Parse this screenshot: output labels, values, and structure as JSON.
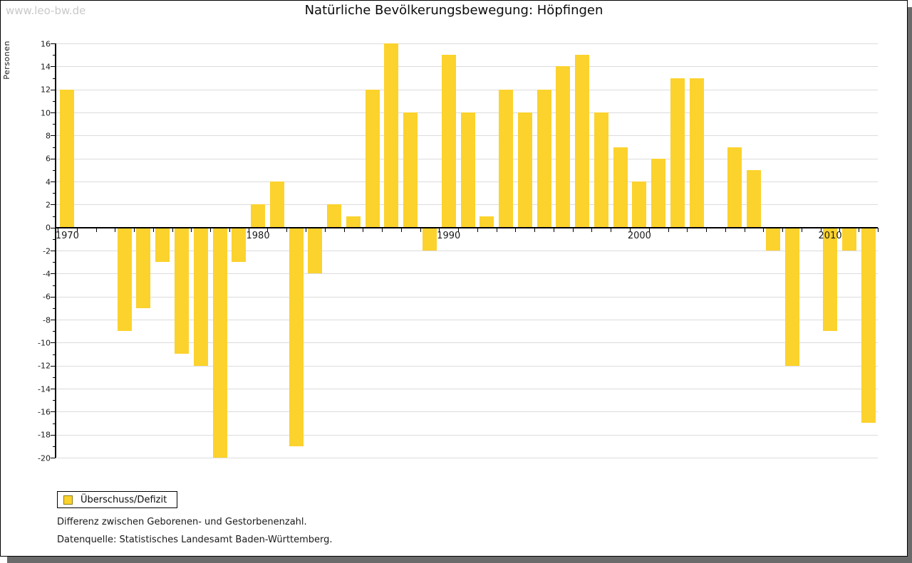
{
  "watermark": "www.leo-bw.de",
  "legend": {
    "label": "Überschuss/Defizit"
  },
  "notes": {
    "line1": "Differenz zwischen Geborenen- und Gestorbenenzahl.",
    "line2": "Datenquelle: Statistisches Landesamt Baden-Württemberg."
  },
  "colors": {
    "bar": "#fcd22d",
    "gridline": "#dcdcdc",
    "axis": "#000000",
    "shadow": "#6b6b6b",
    "watermark": "#c9c9c9"
  },
  "chart_data": {
    "type": "bar",
    "title": "Natürliche Bevölkerungsbewegung: Höpfingen",
    "xlabel": "",
    "ylabel": "Personen",
    "ylim": [
      -20,
      16
    ],
    "ytick_step": 2,
    "ytick_minor_step": 1,
    "grid": true,
    "legend_position": "bottom-left",
    "legend_entries": [
      "Überschuss/Defizit"
    ],
    "xtick_labels": [
      "1970",
      "1980",
      "1990",
      "2000",
      "2010"
    ],
    "years": [
      1970,
      1971,
      1972,
      1973,
      1974,
      1975,
      1976,
      1977,
      1978,
      1979,
      1980,
      1981,
      1982,
      1983,
      1984,
      1985,
      1986,
      1987,
      1988,
      1989,
      1990,
      1991,
      1992,
      1993,
      1994,
      1995,
      1996,
      1997,
      1998,
      1999,
      2000,
      2001,
      2002,
      2003,
      2004,
      2005,
      2006,
      2007,
      2008,
      2009,
      2010,
      2011,
      2012
    ],
    "values": [
      12,
      0,
      0,
      -9,
      -7,
      -3,
      -11,
      -12,
      -20,
      -3,
      2,
      4,
      -19,
      -4,
      2,
      1,
      12,
      16,
      10,
      -2,
      15,
      10,
      1,
      12,
      10,
      12,
      14,
      15,
      10,
      7,
      4,
      6,
      13,
      13,
      0,
      7,
      5,
      -2,
      -12,
      0,
      -9,
      -2,
      -17
    ]
  }
}
